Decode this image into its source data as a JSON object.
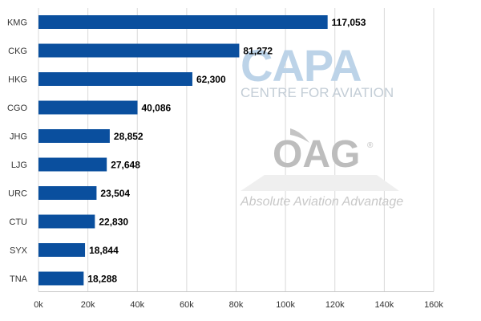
{
  "chart_data": {
    "type": "bar",
    "orientation": "horizontal",
    "categories": [
      "KMG",
      "CKG",
      "HKG",
      "CGO",
      "JHG",
      "LJG",
      "URC",
      "CTU",
      "SYX",
      "TNA"
    ],
    "values": [
      117053,
      81272,
      62300,
      40086,
      28852,
      27648,
      23504,
      22830,
      18844,
      18288
    ],
    "value_labels": [
      "117,053",
      "81,272",
      "62,300",
      "40,086",
      "28,852",
      "27,648",
      "23,504",
      "22,830",
      "18,844",
      "18,288"
    ],
    "xlim": [
      0,
      160000
    ],
    "x_ticks": [
      0,
      20000,
      40000,
      60000,
      80000,
      100000,
      120000,
      140000,
      160000
    ],
    "x_tick_labels": [
      "0k",
      "20k",
      "40k",
      "60k",
      "80k",
      "100k",
      "120k",
      "140k",
      "160k"
    ],
    "grid": "vertical",
    "bar_color": "#0a4f9e",
    "grid_color": "#d9d9d9",
    "title": "",
    "xlabel": "",
    "ylabel": ""
  },
  "watermarks": {
    "capa": {
      "wordmark": "CAPA",
      "subline": "CENTRE FOR AVIATION",
      "color": "#bcd3e8",
      "subline_color": "#c3cdd6"
    },
    "oag": {
      "wordmark": "OAG",
      "registered": "®",
      "tagline": "Absolute Aviation Advantage",
      "color": "#bdbdbd",
      "tagline_color": "#c8c8c8"
    }
  }
}
